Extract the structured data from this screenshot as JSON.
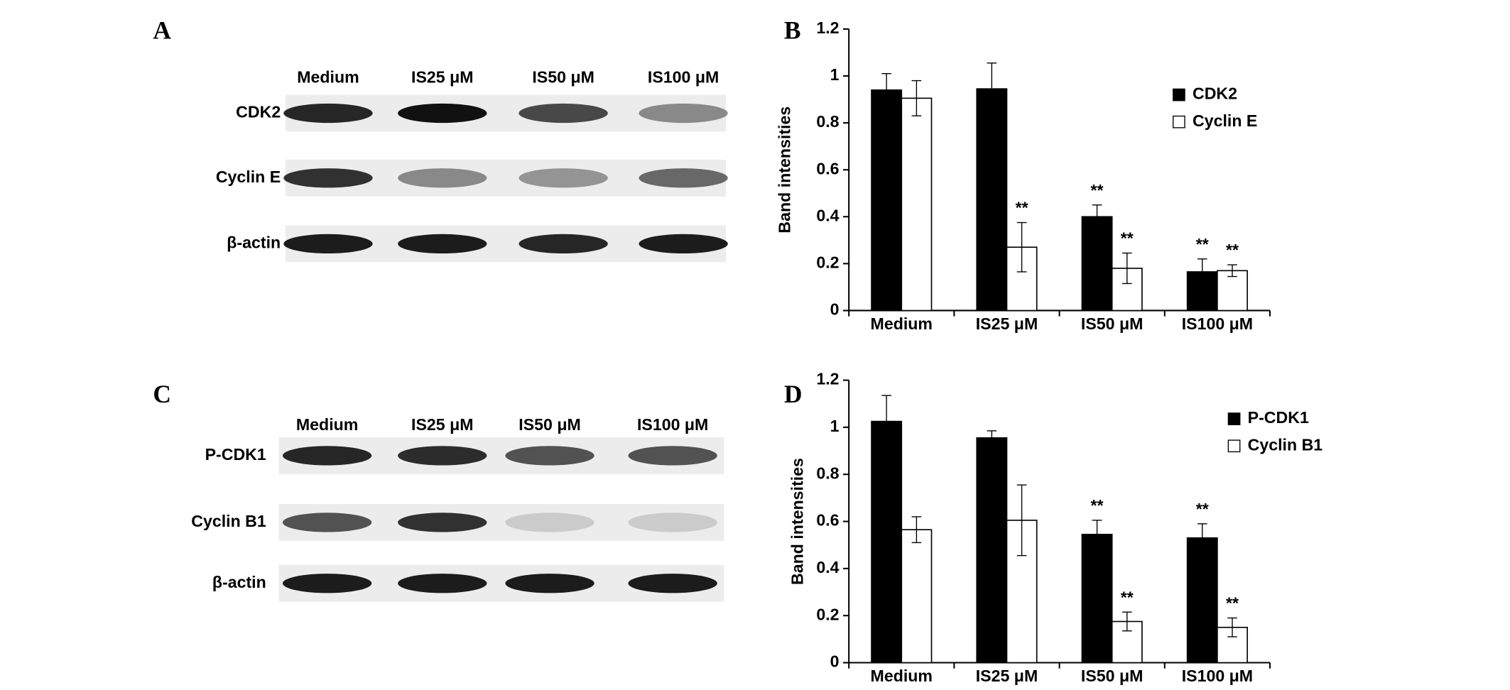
{
  "chart_data": [
    {
      "type": "bar",
      "panel_label": "B",
      "y_label": "Band intensities",
      "categories": [
        "Medium",
        "IS25 μM",
        "IS50 μM",
        "IS100 μM"
      ],
      "ylim": [
        0,
        1.2
      ],
      "yticks": [
        0,
        0.2,
        0.4,
        0.6,
        0.8,
        1,
        1.2
      ],
      "series": [
        {
          "name": "CDK2",
          "color": "#000000",
          "values": [
            0.94,
            0.945,
            0.4,
            0.165
          ],
          "errors": [
            0.07,
            0.11,
            0.05,
            0.055
          ],
          "labels": [
            null,
            null,
            "**",
            "**"
          ]
        },
        {
          "name": "Cyclin E",
          "color": "#ffffff",
          "values": [
            0.905,
            0.27,
            0.18,
            0.17
          ],
          "errors": [
            0.075,
            0.105,
            0.065,
            0.025
          ],
          "labels": [
            null,
            "**",
            "**",
            "**"
          ]
        }
      ]
    },
    {
      "type": "bar",
      "panel_label": "D",
      "y_label": "Band intensities",
      "categories": [
        "Medium",
        "IS25 μM",
        "IS50 μM",
        "IS100 μM"
      ],
      "ylim": [
        0,
        1.2
      ],
      "yticks": [
        0,
        0.2,
        0.4,
        0.6,
        0.8,
        1,
        1.2
      ],
      "series": [
        {
          "name": "P-CDK1",
          "color": "#000000",
          "values": [
            1.025,
            0.955,
            0.545,
            0.53
          ],
          "errors": [
            0.11,
            0.03,
            0.06,
            0.06
          ],
          "labels": [
            null,
            null,
            "**",
            "**"
          ]
        },
        {
          "name": "Cyclin B1",
          "color": "#ffffff",
          "values": [
            0.565,
            0.605,
            0.175,
            0.15
          ],
          "errors": [
            0.055,
            0.15,
            0.04,
            0.04
          ],
          "labels": [
            null,
            null,
            "**",
            "**"
          ]
        }
      ]
    }
  ],
  "blots": [
    {
      "panel_label": "A",
      "lanes": [
        "Medium",
        "IS25 μM",
        "IS50 μM",
        "IS100 μM"
      ],
      "rows": [
        "CDK2",
        "Cyclin E",
        "β-actin"
      ]
    },
    {
      "panel_label": "C",
      "lanes": [
        "Medium",
        "IS25 μM",
        "IS50 μM",
        "IS100 μM"
      ],
      "rows": [
        "P-CDK1",
        "Cyclin B1",
        "β-actin"
      ]
    }
  ]
}
